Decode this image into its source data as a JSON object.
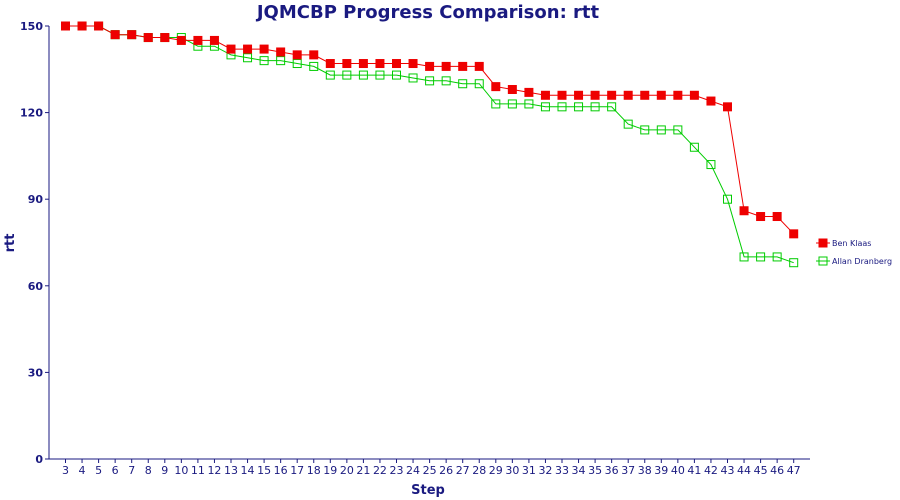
{
  "chart_data": {
    "type": "line",
    "title": "JQMCBP Progress Comparison: rtt",
    "xlabel": "Step",
    "ylabel": "rtt",
    "ylim": [
      0,
      150
    ],
    "yticks": [
      0,
      30,
      60,
      90,
      120,
      150
    ],
    "grid": false,
    "legend_position": "right",
    "x": [
      3,
      4,
      5,
      6,
      7,
      8,
      9,
      10,
      11,
      12,
      13,
      14,
      15,
      16,
      17,
      18,
      19,
      20,
      21,
      22,
      23,
      24,
      25,
      26,
      27,
      28,
      29,
      30,
      31,
      32,
      33,
      34,
      35,
      36,
      37,
      38,
      39,
      40,
      41,
      42,
      43,
      44,
      45,
      46,
      47
    ],
    "series": [
      {
        "name": "Ben Klaas",
        "color": "#ee0000",
        "marker": "filled-square",
        "values": [
          150,
          150,
          150,
          147,
          147,
          146,
          146,
          145,
          145,
          145,
          142,
          142,
          142,
          141,
          140,
          140,
          137,
          137,
          137,
          137,
          137,
          137,
          136,
          136,
          136,
          136,
          129,
          128,
          127,
          126,
          126,
          126,
          126,
          126,
          126,
          126,
          126,
          126,
          126,
          124,
          122,
          86,
          84,
          84,
          78
        ]
      },
      {
        "name": "Allan Dranberg",
        "color": "#00cc00",
        "marker": "hollow-square",
        "values": [
          150,
          150,
          150,
          147,
          147,
          146,
          146,
          146,
          143,
          143,
          140,
          139,
          138,
          138,
          137,
          136,
          133,
          133,
          133,
          133,
          133,
          132,
          131,
          131,
          130,
          130,
          123,
          123,
          123,
          122,
          122,
          122,
          122,
          122,
          116,
          114,
          114,
          114,
          108,
          102,
          90,
          70,
          70,
          70,
          68
        ]
      }
    ]
  }
}
